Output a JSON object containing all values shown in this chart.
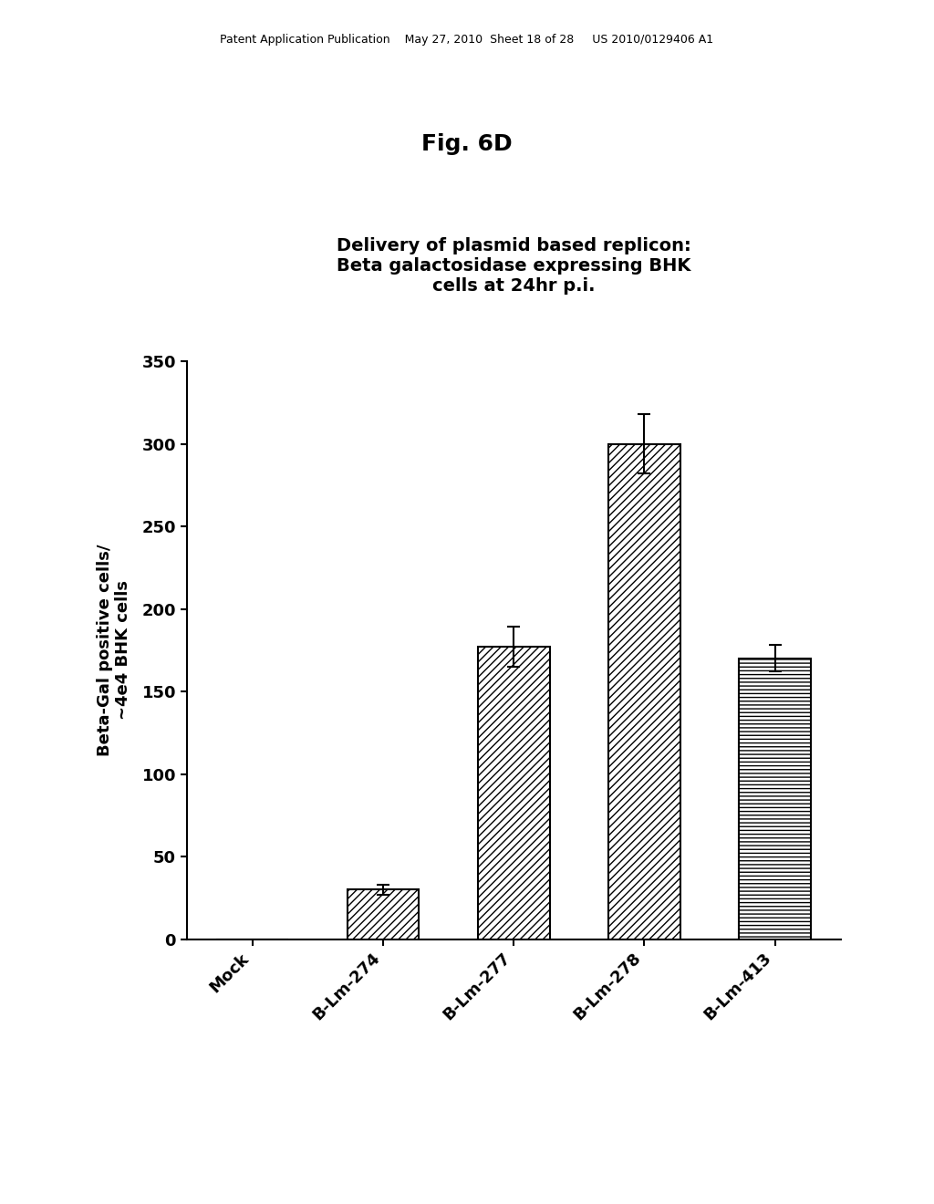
{
  "fig_label": "Fig. 6D",
  "chart_title": "Delivery of plasmid based replicon:\nBeta galactosidase expressing BHK\ncells at 24hr p.i.",
  "ylabel_line1": "Beta-Gal positive cells/",
  "ylabel_line2": "~4e4 BHK cells",
  "categories": [
    "Mock",
    "B-Lm-274",
    "B-Lm-277",
    "B-Lm-278",
    "B-Lm-413"
  ],
  "values": [
    0,
    30,
    177,
    300,
    170
  ],
  "errors": [
    0,
    3,
    12,
    18,
    8
  ],
  "ylim": [
    0,
    350
  ],
  "yticks": [
    0,
    50,
    100,
    150,
    200,
    250,
    300,
    350
  ],
  "hatch_patterns": [
    "xxxx",
    "////",
    "////",
    "////",
    "----"
  ],
  "background_color": "#ffffff",
  "header_text": "Patent Application Publication    May 27, 2010  Sheet 18 of 28     US 2010/0129406 A1",
  "bar_width": 0.55,
  "title_fontsize": 14,
  "axis_fontsize": 13,
  "tick_fontsize": 13,
  "header_fontsize": 9,
  "fig_label_fontsize": 18
}
